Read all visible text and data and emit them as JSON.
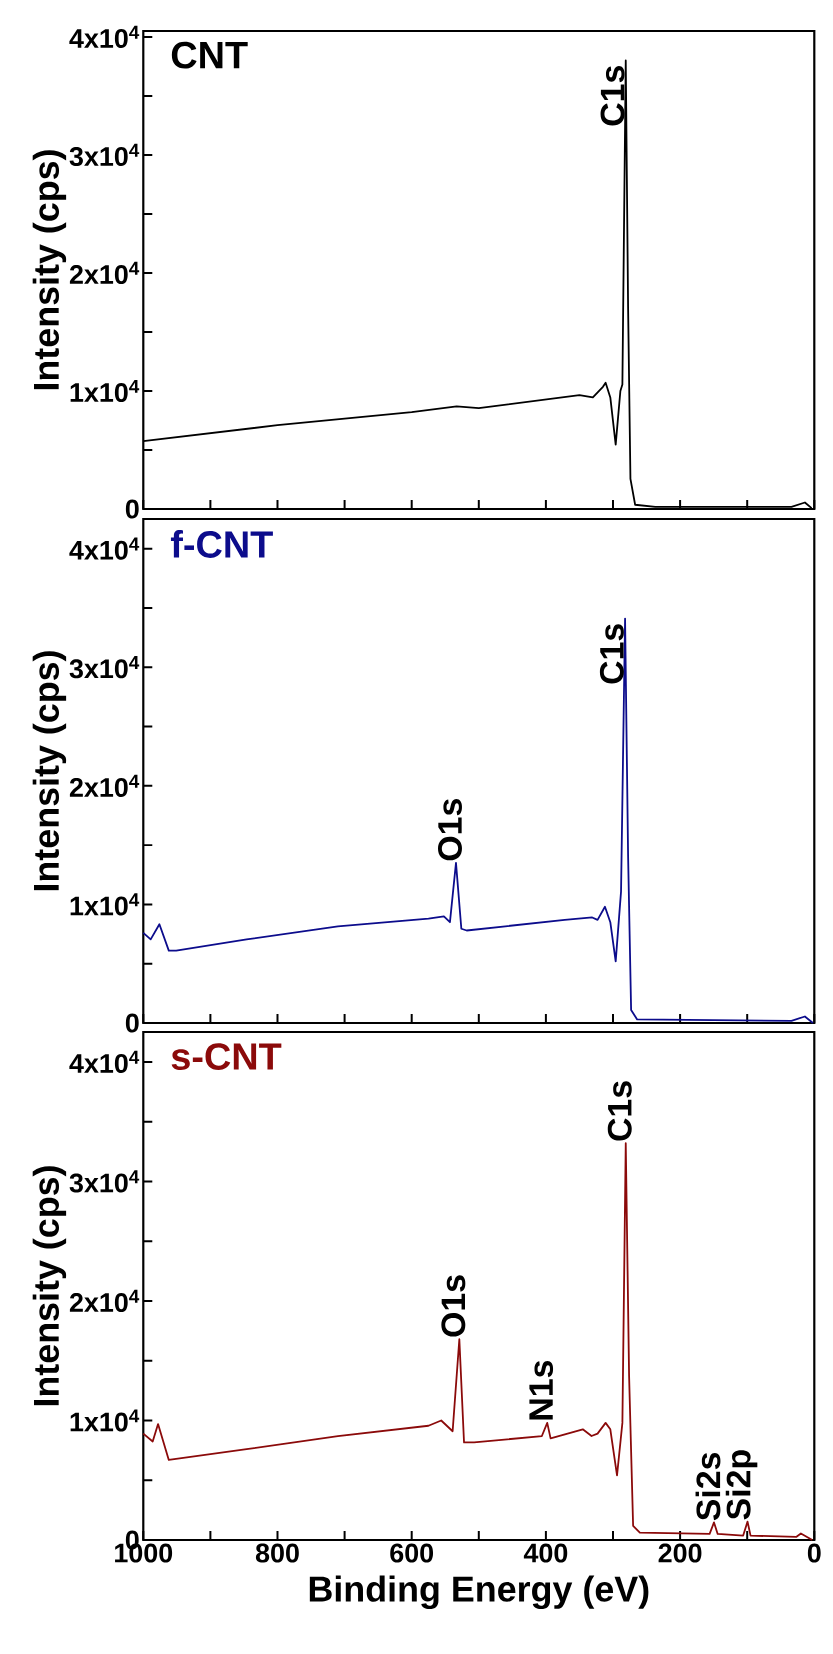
{
  "chart_data": [
    {
      "type": "line",
      "ylabel": "Intensity (cps)",
      "xlim": [
        1000,
        0
      ],
      "ylim": [
        0,
        40500
      ],
      "tick_labels": "y",
      "xticks": [
        1000,
        {
          "value": 900,
          "label": null
        },
        800,
        {
          "value": 700,
          "label": null
        },
        600,
        {
          "value": 500,
          "label": null
        },
        400,
        {
          "value": 300,
          "label": null
        },
        200,
        {
          "value": 100,
          "label": null
        },
        0
      ],
      "yticks": [
        0,
        {
          "value": 5000,
          "label": null
        },
        {
          "value": 10000,
          "label": "1x10$^{4}$"
        },
        {
          "value": 15000,
          "label": null
        },
        {
          "value": 20000,
          "label": "2x10$^{4}$"
        },
        {
          "value": 25000,
          "label": null
        },
        {
          "value": 30000,
          "label": "3x10$^{4}$"
        },
        {
          "value": 35000,
          "label": null
        },
        {
          "value": 40000,
          "label": "4x10$^{4}$"
        }
      ],
      "x": [
        1000,
        800,
        600,
        533,
        500,
        350,
        330,
        315,
        311,
        304,
        296,
        289,
        286,
        281,
        277.5,
        274,
        267,
        237,
        34,
        14,
        4
      ],
      "series": [
        {
          "name": "CNT",
          "color": "#000000",
          "values": [
            5750,
            7100,
            8200,
            8700,
            8550,
            9650,
            9450,
            10350,
            10700,
            9450,
            5450,
            10000,
            10550,
            38000,
            17100,
            2550,
            360,
            180,
            180,
            550,
            70
          ]
        }
      ],
      "annotations": [
        {
          "text": "C1s",
          "x": 281,
          "y": 38000
        }
      ]
    },
    {
      "type": "line",
      "ylabel": "Intensity (cps)",
      "xlim": [
        1000,
        0
      ],
      "ylim": [
        0,
        42500
      ],
      "tick_labels": "y",
      "xticks": [
        1000,
        {
          "value": 900,
          "label": null
        },
        800,
        {
          "value": 700,
          "label": null
        },
        600,
        {
          "value": 500,
          "label": null
        },
        400,
        {
          "value": 300,
          "label": null
        },
        200,
        {
          "value": 100,
          "label": null
        },
        0
      ],
      "yticks": [
        0,
        {
          "value": 5000,
          "label": null
        },
        {
          "value": 10000,
          "label": "1x10$^{4}$"
        },
        {
          "value": 15000,
          "label": null
        },
        {
          "value": 20000,
          "label": "2x10$^{4}$"
        },
        {
          "value": 25000,
          "label": null
        },
        {
          "value": 30000,
          "label": "3x10$^{4}$"
        },
        {
          "value": 35000,
          "label": null
        },
        {
          "value": 40000,
          "label": "4x10$^{4}$"
        }
      ],
      "x": [
        1000,
        989,
        976,
        962,
        951,
        846,
        710,
        575,
        552,
        543,
        534,
        526,
        518,
        372,
        331,
        323,
        312,
        304,
        296,
        288,
        282,
        277.5,
        273,
        264,
        34,
        14,
        2
      ],
      "series": [
        {
          "name": "f-CNT",
          "color": "#0c0c8c",
          "values": [
            7600,
            7050,
            8330,
            6100,
            6100,
            7050,
            8150,
            8800,
            9000,
            8500,
            13500,
            7950,
            7800,
            8700,
            8900,
            8700,
            9800,
            8500,
            5200,
            11100,
            34100,
            14100,
            1100,
            300,
            185,
            550,
            0
          ]
        }
      ],
      "annotations": [
        {
          "text": "O1s",
          "x": 534,
          "y": 13500
        },
        {
          "text": "C1s",
          "x": 282,
          "y": 34100
        }
      ]
    },
    {
      "type": "line",
      "xlabel": "Binding Energy (eV)",
      "ylabel": "Intensity (cps)",
      "xlim": [
        1000,
        0
      ],
      "ylim": [
        0,
        42500
      ],
      "xticks": [
        1000,
        {
          "value": 900,
          "label": null
        },
        800,
        {
          "value": 700,
          "label": null
        },
        600,
        {
          "value": 500,
          "label": null
        },
        400,
        {
          "value": 300,
          "label": null
        },
        200,
        {
          "value": 100,
          "label": null
        },
        0
      ],
      "yticks": [
        0,
        {
          "value": 5000,
          "label": null
        },
        {
          "value": 10000,
          "label": "1x10$^{4}$"
        },
        {
          "value": 15000,
          "label": null
        },
        {
          "value": 20000,
          "label": "2x10$^{4}$"
        },
        {
          "value": 25000,
          "label": null
        },
        {
          "value": 30000,
          "label": "3x10$^{4}$"
        },
        {
          "value": 35000,
          "label": null
        },
        {
          "value": 40000,
          "label": "4x10$^{4}$"
        }
      ],
      "x": [
        1000,
        986,
        978,
        962,
        846,
        710,
        575,
        556,
        539,
        529,
        522,
        507,
        406,
        398,
        393,
        345,
        332,
        323,
        311,
        304,
        294,
        286,
        281,
        276,
        270,
        260,
        156,
        149.5,
        144,
        106,
        99.5,
        95,
        27,
        20,
        3
      ],
      "series": [
        {
          "name": "s-CNT",
          "color": "#8b0a0a",
          "values": [
            8900,
            8240,
            9700,
            6700,
            7600,
            8700,
            9560,
            10000,
            9100,
            16800,
            8160,
            8160,
            8700,
            9800,
            8500,
            9260,
            8700,
            8900,
            9800,
            9260,
            5400,
            9800,
            33200,
            13700,
            1180,
            620,
            510,
            1470,
            510,
            370,
            1540,
            370,
            260,
            550,
            0
          ]
        }
      ],
      "annotations": [
        {
          "text": "O1s",
          "x": 529,
          "y": 16800
        },
        {
          "text": "N1s",
          "x": 398,
          "y": 9800
        },
        {
          "text": "C1s",
          "x": 281,
          "y": 33200
        },
        {
          "text": "Si2s",
          "x": 149.5,
          "y": 1470
        },
        {
          "text": "Si2p",
          "x": 99.5,
          "y": 1540
        }
      ]
    }
  ]
}
